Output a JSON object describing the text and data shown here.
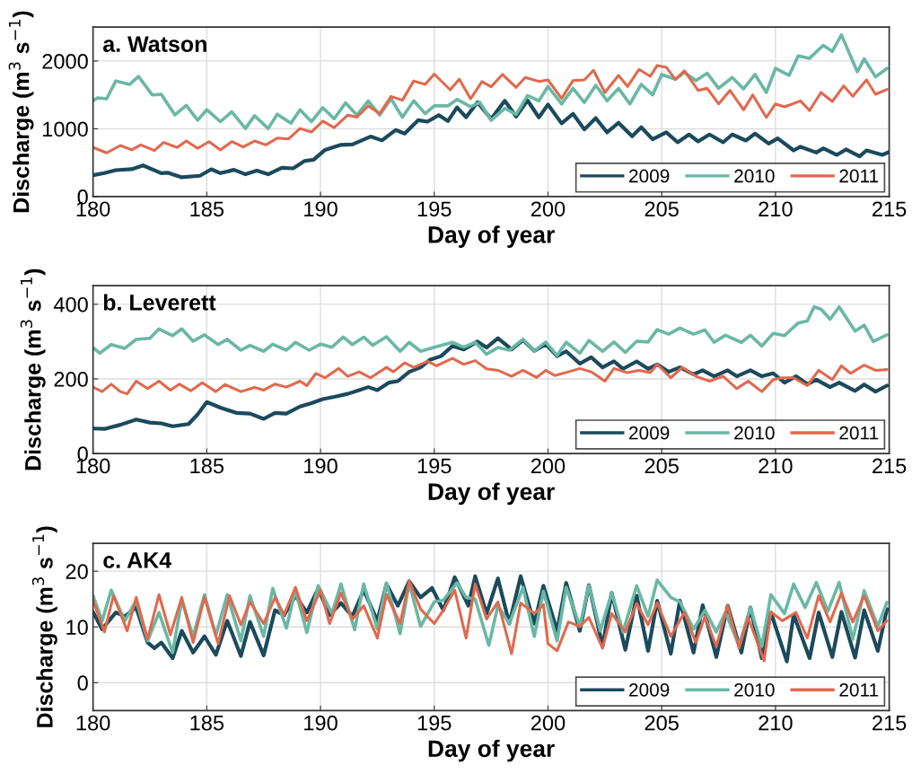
{
  "chart_data": [
    {
      "type": "line",
      "title": "a. Watson",
      "xlabel": "Day of year",
      "ylabel": "Discharge (m$^{3}$ s$^{−1}$)",
      "xlim": [
        180,
        215
      ],
      "xticks": [
        180,
        185,
        190,
        195,
        200,
        205,
        210,
        215
      ],
      "ylim": [
        0,
        2500
      ],
      "yticks": [
        0,
        1000,
        2000
      ],
      "grid": true,
      "legend": "bottom right",
      "line_style": "solid",
      "marker": "none",
      "series": [
        {
          "name": "2009",
          "color": "#1b4a5c",
          "x": [
            180.0,
            180.5,
            181.0,
            181.7,
            182.2,
            183.0,
            183.3,
            183.9,
            184.7,
            185.2,
            185.6,
            186.2,
            186.7,
            187.2,
            187.7,
            188.3,
            188.8,
            189.3,
            189.7,
            190.2,
            190.9,
            191.4,
            192.2,
            192.7,
            193.3,
            193.7,
            194.3,
            194.7,
            195.2,
            195.6,
            196.0,
            196.4,
            196.9,
            197.5,
            198.1,
            198.6,
            199.1,
            199.6,
            200.0,
            200.6,
            201.1,
            201.6,
            202.1,
            202.6,
            203.1,
            203.7,
            204.1,
            204.6,
            205.2,
            205.7,
            206.2,
            206.6,
            207.1,
            207.7,
            208.1,
            208.7,
            209.1,
            209.7,
            210.1,
            210.8,
            211.1,
            211.8,
            212.1,
            212.7,
            213.1,
            213.7,
            214.0,
            214.7,
            215.0
          ],
          "values": [
            315,
            346,
            390,
            404,
            460,
            346,
            351,
            285,
            307,
            403,
            346,
            395,
            329,
            382,
            329,
            425,
            417,
            526,
            544,
            689,
            763,
            768,
            886,
            829,
            982,
            930,
            1127,
            1105,
            1202,
            1114,
            1316,
            1171,
            1390,
            1146,
            1412,
            1181,
            1420,
            1168,
            1358,
            1080,
            1221,
            991,
            1159,
            947,
            1089,
            889,
            1022,
            845,
            947,
            801,
            916,
            814,
            916,
            801,
            916,
            827,
            929,
            783,
            858,
            681,
            735,
            650,
            712,
            615,
            695,
            593,
            681,
            615,
            659
          ]
        },
        {
          "name": "2010",
          "color": "#6ab8a4",
          "x": [
            180.0,
            180.2,
            180.6,
            181.0,
            181.6,
            182.0,
            182.6,
            183.0,
            183.6,
            184.1,
            184.6,
            185.0,
            185.6,
            186.1,
            186.7,
            187.1,
            187.7,
            188.1,
            188.7,
            189.1,
            189.6,
            190.1,
            190.6,
            191.1,
            191.6,
            192.1,
            192.6,
            193.1,
            193.6,
            194.1,
            194.6,
            195.0,
            195.6,
            196.0,
            196.6,
            197.0,
            197.5,
            198.1,
            198.6,
            199.1,
            199.6,
            200.0,
            200.6,
            201.1,
            201.6,
            202.1,
            202.6,
            203.1,
            203.6,
            204.1,
            204.6,
            205.0,
            205.6,
            206.0,
            206.5,
            207.0,
            207.5,
            208.1,
            208.6,
            209.1,
            209.6,
            210.0,
            210.6,
            211.0,
            211.5,
            212.1,
            212.5,
            212.9,
            213.6,
            213.9,
            214.4,
            214.9
          ],
          "values": [
            1412,
            1456,
            1443,
            1706,
            1654,
            1772,
            1500,
            1509,
            1206,
            1346,
            1127,
            1281,
            1105,
            1250,
            1004,
            1193,
            1004,
            1215,
            1083,
            1281,
            1105,
            1311,
            1149,
            1382,
            1202,
            1412,
            1202,
            1443,
            1171,
            1412,
            1224,
            1338,
            1338,
            1434,
            1325,
            1390,
            1124,
            1301,
            1212,
            1491,
            1412,
            1624,
            1367,
            1597,
            1389,
            1642,
            1412,
            1597,
            1367,
            1655,
            1500,
            1801,
            1730,
            1832,
            1712,
            1819,
            1597,
            1757,
            1589,
            1801,
            1536,
            1890,
            1788,
            2075,
            2040,
            2230,
            2142,
            2385,
            1841,
            2031,
            1766,
            1890
          ]
        },
        {
          "name": "2011",
          "color": "#e0694e",
          "x": [
            180.0,
            180.6,
            181.2,
            181.7,
            182.1,
            182.7,
            183.1,
            183.7,
            184.1,
            184.6,
            185.1,
            185.6,
            186.1,
            186.6,
            187.1,
            187.6,
            188.1,
            188.6,
            189.1,
            189.6,
            190.1,
            190.6,
            191.2,
            191.6,
            192.1,
            192.6,
            193.1,
            193.6,
            194.1,
            194.6,
            195.0,
            195.7,
            196.1,
            196.6,
            197.1,
            197.5,
            198.0,
            198.6,
            199.0,
            199.6,
            200.0,
            200.6,
            201.1,
            201.6,
            202.0,
            202.5,
            203.1,
            203.5,
            204.0,
            204.5,
            204.8,
            205.2,
            205.6,
            206.0,
            206.6,
            207.0,
            207.5,
            208.0,
            208.6,
            209.0,
            209.6,
            210.0,
            210.4,
            211.1,
            211.5,
            212.0,
            212.5,
            213.0,
            213.4,
            214.0,
            214.4,
            214.9
          ],
          "values": [
            724,
            645,
            754,
            689,
            763,
            680,
            798,
            724,
            820,
            711,
            811,
            689,
            811,
            732,
            820,
            763,
            864,
            851,
            1004,
            952,
            1114,
            1018,
            1202,
            1171,
            1338,
            1224,
            1478,
            1421,
            1706,
            1654,
            1807,
            1575,
            1732,
            1443,
            1697,
            1620,
            1801,
            1611,
            1757,
            1699,
            1721,
            1447,
            1712,
            1721,
            1863,
            1535,
            1788,
            1624,
            1876,
            1774,
            1934,
            1907,
            1730,
            1854,
            1566,
            1597,
            1367,
            1566,
            1279,
            1500,
            1168,
            1367,
            1323,
            1412,
            1270,
            1536,
            1403,
            1633,
            1478,
            1721,
            1509,
            1580
          ]
        }
      ]
    },
    {
      "type": "line",
      "title": "b. Leverett",
      "xlabel": "Day of year",
      "ylabel": "Discharge (m$^{3}$ s$^{−1}$)",
      "xlim": [
        180,
        215
      ],
      "xticks": [
        180,
        185,
        190,
        195,
        200,
        205,
        210,
        215
      ],
      "ylim": [
        0,
        450
      ],
      "yticks": [
        0,
        200,
        400
      ],
      "grid": true,
      "legend": "bottom right",
      "line_style": "solid",
      "marker": "none",
      "series": [
        {
          "name": "2009",
          "color": "#1b4a5c",
          "x": [
            180.0,
            180.5,
            181.2,
            181.9,
            182.5,
            183.0,
            183.5,
            184.2,
            184.6,
            185.0,
            185.6,
            186.3,
            186.9,
            187.5,
            188.0,
            188.5,
            189.1,
            189.6,
            190.1,
            190.6,
            191.2,
            191.7,
            192.1,
            192.5,
            193.0,
            193.4,
            193.9,
            194.4,
            194.8,
            195.3,
            195.8,
            196.3,
            196.9,
            197.3,
            197.8,
            198.4,
            198.9,
            199.4,
            199.9,
            200.4,
            200.8,
            201.4,
            201.9,
            202.4,
            202.9,
            203.3,
            203.9,
            204.4,
            204.8,
            205.3,
            205.8,
            206.4,
            206.8,
            207.3,
            207.9,
            208.3,
            208.9,
            209.4,
            209.9,
            210.4,
            210.9,
            211.4,
            211.8,
            212.4,
            212.8,
            213.5,
            213.9,
            214.4,
            214.9
          ],
          "values": [
            67,
            66,
            77,
            91,
            83,
            81,
            73,
            79,
            105,
            138,
            123,
            109,
            107,
            93,
            109,
            107,
            126,
            135,
            146,
            152,
            160,
            170,
            178,
            170,
            190,
            194,
            219,
            231,
            251,
            261,
            288,
            279,
            300,
            284,
            309,
            279,
            304,
            275,
            293,
            261,
            274,
            241,
            258,
            231,
            247,
            227,
            247,
            227,
            239,
            219,
            231,
            212,
            223,
            207,
            223,
            207,
            223,
            207,
            215,
            190,
            207,
            186,
            198,
            178,
            190,
            168,
            185,
            166,
            182
          ]
        },
        {
          "name": "2010",
          "color": "#6ab8a4",
          "x": [
            180.0,
            180.3,
            180.8,
            181.4,
            181.9,
            182.5,
            182.9,
            183.5,
            183.9,
            184.4,
            184.9,
            185.5,
            185.9,
            186.5,
            186.9,
            187.5,
            187.9,
            188.5,
            188.9,
            189.5,
            190.0,
            190.5,
            191.0,
            191.4,
            191.9,
            192.3,
            192.9,
            193.5,
            193.9,
            194.4,
            195.0,
            195.8,
            196.3,
            196.8,
            197.3,
            197.8,
            198.3,
            198.9,
            199.4,
            199.9,
            200.4,
            200.8,
            201.4,
            201.8,
            202.4,
            202.9,
            203.4,
            203.9,
            204.4,
            204.8,
            205.3,
            205.8,
            206.4,
            206.9,
            207.3,
            207.8,
            208.5,
            208.9,
            209.4,
            209.9,
            210.4,
            211.0,
            211.4,
            211.7,
            212.0,
            212.4,
            212.8,
            213.5,
            213.9,
            214.3,
            214.9
          ],
          "values": [
            284,
            269,
            292,
            282,
            306,
            309,
            334,
            316,
            334,
            301,
            318,
            292,
            306,
            277,
            290,
            274,
            293,
            277,
            298,
            277,
            293,
            285,
            312,
            292,
            312,
            290,
            313,
            274,
            298,
            274,
            285,
            298,
            285,
            298,
            266,
            284,
            277,
            306,
            275,
            299,
            263,
            298,
            269,
            303,
            274,
            299,
            271,
            301,
            299,
            332,
            320,
            336,
            320,
            331,
            298,
            317,
            298,
            317,
            288,
            322,
            316,
            350,
            355,
            393,
            387,
            360,
            393,
            328,
            344,
            300,
            318
          ]
        },
        {
          "name": "2011",
          "color": "#e0694e",
          "x": [
            180.0,
            180.4,
            180.8,
            181.2,
            181.5,
            181.9,
            182.4,
            182.9,
            183.4,
            183.8,
            184.3,
            184.8,
            185.4,
            185.8,
            186.5,
            187.1,
            187.5,
            188.0,
            188.5,
            189.1,
            189.4,
            189.8,
            190.2,
            190.8,
            191.2,
            191.7,
            192.2,
            192.9,
            193.2,
            193.7,
            194.1,
            194.7,
            195.1,
            195.8,
            196.3,
            196.8,
            197.3,
            197.8,
            198.4,
            198.9,
            199.5,
            199.9,
            200.3,
            200.9,
            201.4,
            201.9,
            202.5,
            202.9,
            203.5,
            204.0,
            204.5,
            204.8,
            205.4,
            205.9,
            206.5,
            207.1,
            207.7,
            208.3,
            208.8,
            209.4,
            209.9,
            210.3,
            210.8,
            211.4,
            211.9,
            212.5,
            212.9,
            213.3,
            213.9,
            214.4,
            214.9
          ],
          "values": [
            178,
            166,
            186,
            166,
            160,
            194,
            174,
            194,
            170,
            186,
            168,
            190,
            166,
            185,
            166,
            177,
            170,
            186,
            178,
            194,
            182,
            215,
            203,
            228,
            207,
            219,
            203,
            231,
            219,
            243,
            231,
            247,
            235,
            255,
            239,
            249,
            227,
            223,
            207,
            223,
            204,
            223,
            209,
            219,
            228,
            219,
            194,
            228,
            217,
            223,
            217,
            239,
            203,
            231,
            207,
            194,
            207,
            174,
            194,
            166,
            198,
            203,
            203,
            182,
            223,
            198,
            235,
            215,
            237,
            223,
            225
          ]
        }
      ]
    },
    {
      "type": "line",
      "title": "c. AK4",
      "xlabel": "Day of year",
      "ylabel": "Discharge (m$^{3}$ s$^{−1}$)",
      "xlim": [
        180,
        215
      ],
      "xticks": [
        180,
        185,
        190,
        195,
        200,
        205,
        210,
        215
      ],
      "ylim": [
        -5,
        25
      ],
      "yticks": [
        0,
        10,
        20
      ],
      "grid": true,
      "legend": "bottom right",
      "line_style": "solid",
      "marker": "none",
      "series": [
        {
          "name": "2009",
          "color": "#1b4a5c",
          "x": [
            180.0,
            180.4,
            181.0,
            181.4,
            181.9,
            182.4,
            182.7,
            183.0,
            183.5,
            183.9,
            184.4,
            184.9,
            185.4,
            185.9,
            186.5,
            186.9,
            187.5,
            188.0,
            188.4,
            188.9,
            189.4,
            189.9,
            190.4,
            190.9,
            191.4,
            191.9,
            192.5,
            192.9,
            193.4,
            193.9,
            194.4,
            194.9,
            195.4,
            195.9,
            196.5,
            196.8,
            197.3,
            197.8,
            198.3,
            198.8,
            199.4,
            199.8,
            200.4,
            200.8,
            201.4,
            201.8,
            202.4,
            202.8,
            203.4,
            203.9,
            204.4,
            204.8,
            205.4,
            205.8,
            206.4,
            206.8,
            207.4,
            207.9,
            208.5,
            208.9,
            209.4,
            209.8,
            210.5,
            210.8,
            211.5,
            211.9,
            212.5,
            212.9,
            213.5,
            213.9,
            214.5,
            214.9
          ],
          "values": [
            12.7,
            9.6,
            12.6,
            11.9,
            13.5,
            7.2,
            6.2,
            7.2,
            4.4,
            9.3,
            5.4,
            8.3,
            5.0,
            11.1,
            4.8,
            10.9,
            4.9,
            13.0,
            12.1,
            15.6,
            12.6,
            16.9,
            12.1,
            14.3,
            11.9,
            16.6,
            11.1,
            17.7,
            13.8,
            18.2,
            15.3,
            17.0,
            13.0,
            18.9,
            13.8,
            19.1,
            12.4,
            18.7,
            10.6,
            19.1,
            10.6,
            17.4,
            9.3,
            17.9,
            9.3,
            17.5,
            6.5,
            16.1,
            5.9,
            15.6,
            5.7,
            14.7,
            5.2,
            14.7,
            5.4,
            13.9,
            4.6,
            13.8,
            5.4,
            13.5,
            4.4,
            12.6,
            3.8,
            12.2,
            4.4,
            12.6,
            4.6,
            12.7,
            4.5,
            13.0,
            5.7,
            13.2
          ]
        },
        {
          "name": "2010",
          "color": "#6ab8a4",
          "x": [
            180.0,
            180.4,
            180.8,
            181.4,
            181.9,
            182.4,
            182.9,
            183.5,
            183.9,
            184.4,
            184.9,
            185.4,
            185.9,
            186.5,
            186.9,
            187.5,
            187.9,
            188.5,
            188.9,
            189.4,
            189.9,
            190.5,
            190.9,
            191.5,
            191.9,
            192.5,
            192.9,
            193.5,
            193.9,
            194.4,
            195.0,
            195.4,
            196.0,
            196.4,
            196.8,
            197.4,
            197.8,
            198.3,
            198.9,
            199.4,
            199.8,
            200.4,
            200.8,
            201.4,
            201.8,
            202.3,
            202.8,
            203.3,
            203.9,
            204.4,
            204.8,
            205.4,
            205.8,
            206.4,
            206.9,
            207.4,
            207.8,
            208.4,
            208.9,
            209.4,
            209.8,
            210.4,
            210.8,
            211.3,
            211.8,
            212.3,
            212.8,
            213.4,
            213.9,
            214.5,
            214.9
          ],
          "values": [
            15.6,
            11.1,
            16.6,
            11.1,
            14.8,
            7.5,
            12.6,
            5.4,
            14.8,
            8.3,
            15.8,
            8.5,
            15.8,
            7.5,
            15.6,
            8.3,
            16.9,
            9.8,
            16.6,
            9.0,
            17.4,
            12.4,
            17.7,
            9.5,
            17.7,
            9.6,
            17.9,
            8.8,
            17.8,
            10.1,
            14.5,
            14.8,
            17.9,
            15.3,
            15.0,
            6.7,
            13.8,
            10.6,
            17.1,
            8.3,
            16.4,
            7.5,
            17.1,
            10.1,
            17.4,
            9.3,
            16.1,
            9.1,
            17.4,
            11.9,
            18.4,
            15.3,
            14.5,
            9.6,
            13.0,
            9.1,
            12.6,
            6.7,
            13.5,
            6.5,
            15.8,
            12.4,
            17.7,
            13.5,
            18.0,
            12.8,
            18.0,
            7.8,
            16.5,
            10.1,
            14.4
          ]
        },
        {
          "name": "2011",
          "color": "#e0694e",
          "x": [
            180.0,
            180.5,
            180.9,
            181.5,
            181.9,
            182.4,
            182.9,
            183.4,
            183.9,
            184.4,
            184.9,
            185.5,
            186.0,
            186.5,
            186.9,
            187.5,
            188.0,
            188.4,
            188.9,
            189.4,
            190.0,
            190.4,
            190.9,
            191.4,
            191.9,
            192.5,
            192.9,
            193.5,
            193.9,
            194.4,
            195.0,
            195.4,
            195.9,
            196.4,
            196.8,
            197.3,
            197.8,
            198.4,
            198.8,
            199.4,
            199.8,
            200.0,
            200.4,
            200.9,
            201.4,
            201.8,
            202.4,
            202.8,
            203.4,
            203.9,
            204.4,
            204.8,
            205.4,
            206.0,
            206.5,
            206.9,
            207.4,
            207.9,
            208.4,
            208.8,
            209.5,
            209.8,
            210.3,
            210.9,
            211.4,
            211.9,
            212.4,
            212.9,
            213.4,
            213.9,
            214.5,
            214.9
          ],
          "values": [
            14.8,
            9.1,
            15.6,
            9.3,
            15.3,
            7.8,
            15.8,
            8.6,
            15.3,
            7.2,
            15.3,
            7.0,
            15.6,
            10.4,
            14.5,
            10.6,
            15.3,
            12.2,
            17.1,
            11.1,
            16.6,
            10.6,
            16.1,
            11.4,
            13.8,
            8.0,
            15.8,
            10.6,
            18.2,
            13.2,
            10.6,
            13.0,
            16.6,
            8.0,
            17.7,
            11.4,
            14.5,
            5.2,
            14.3,
            12.4,
            14.0,
            7.0,
            5.7,
            10.9,
            10.1,
            11.7,
            6.2,
            12.4,
            9.1,
            14.2,
            10.4,
            14.3,
            8.3,
            12.6,
            7.2,
            11.9,
            6.5,
            13.8,
            6.2,
            11.7,
            3.9,
            12.7,
            11.1,
            12.6,
            8.0,
            15.6,
            10.9,
            16.1,
            10.9,
            15.6,
            9.3,
            11.1
          ]
        }
      ]
    }
  ]
}
